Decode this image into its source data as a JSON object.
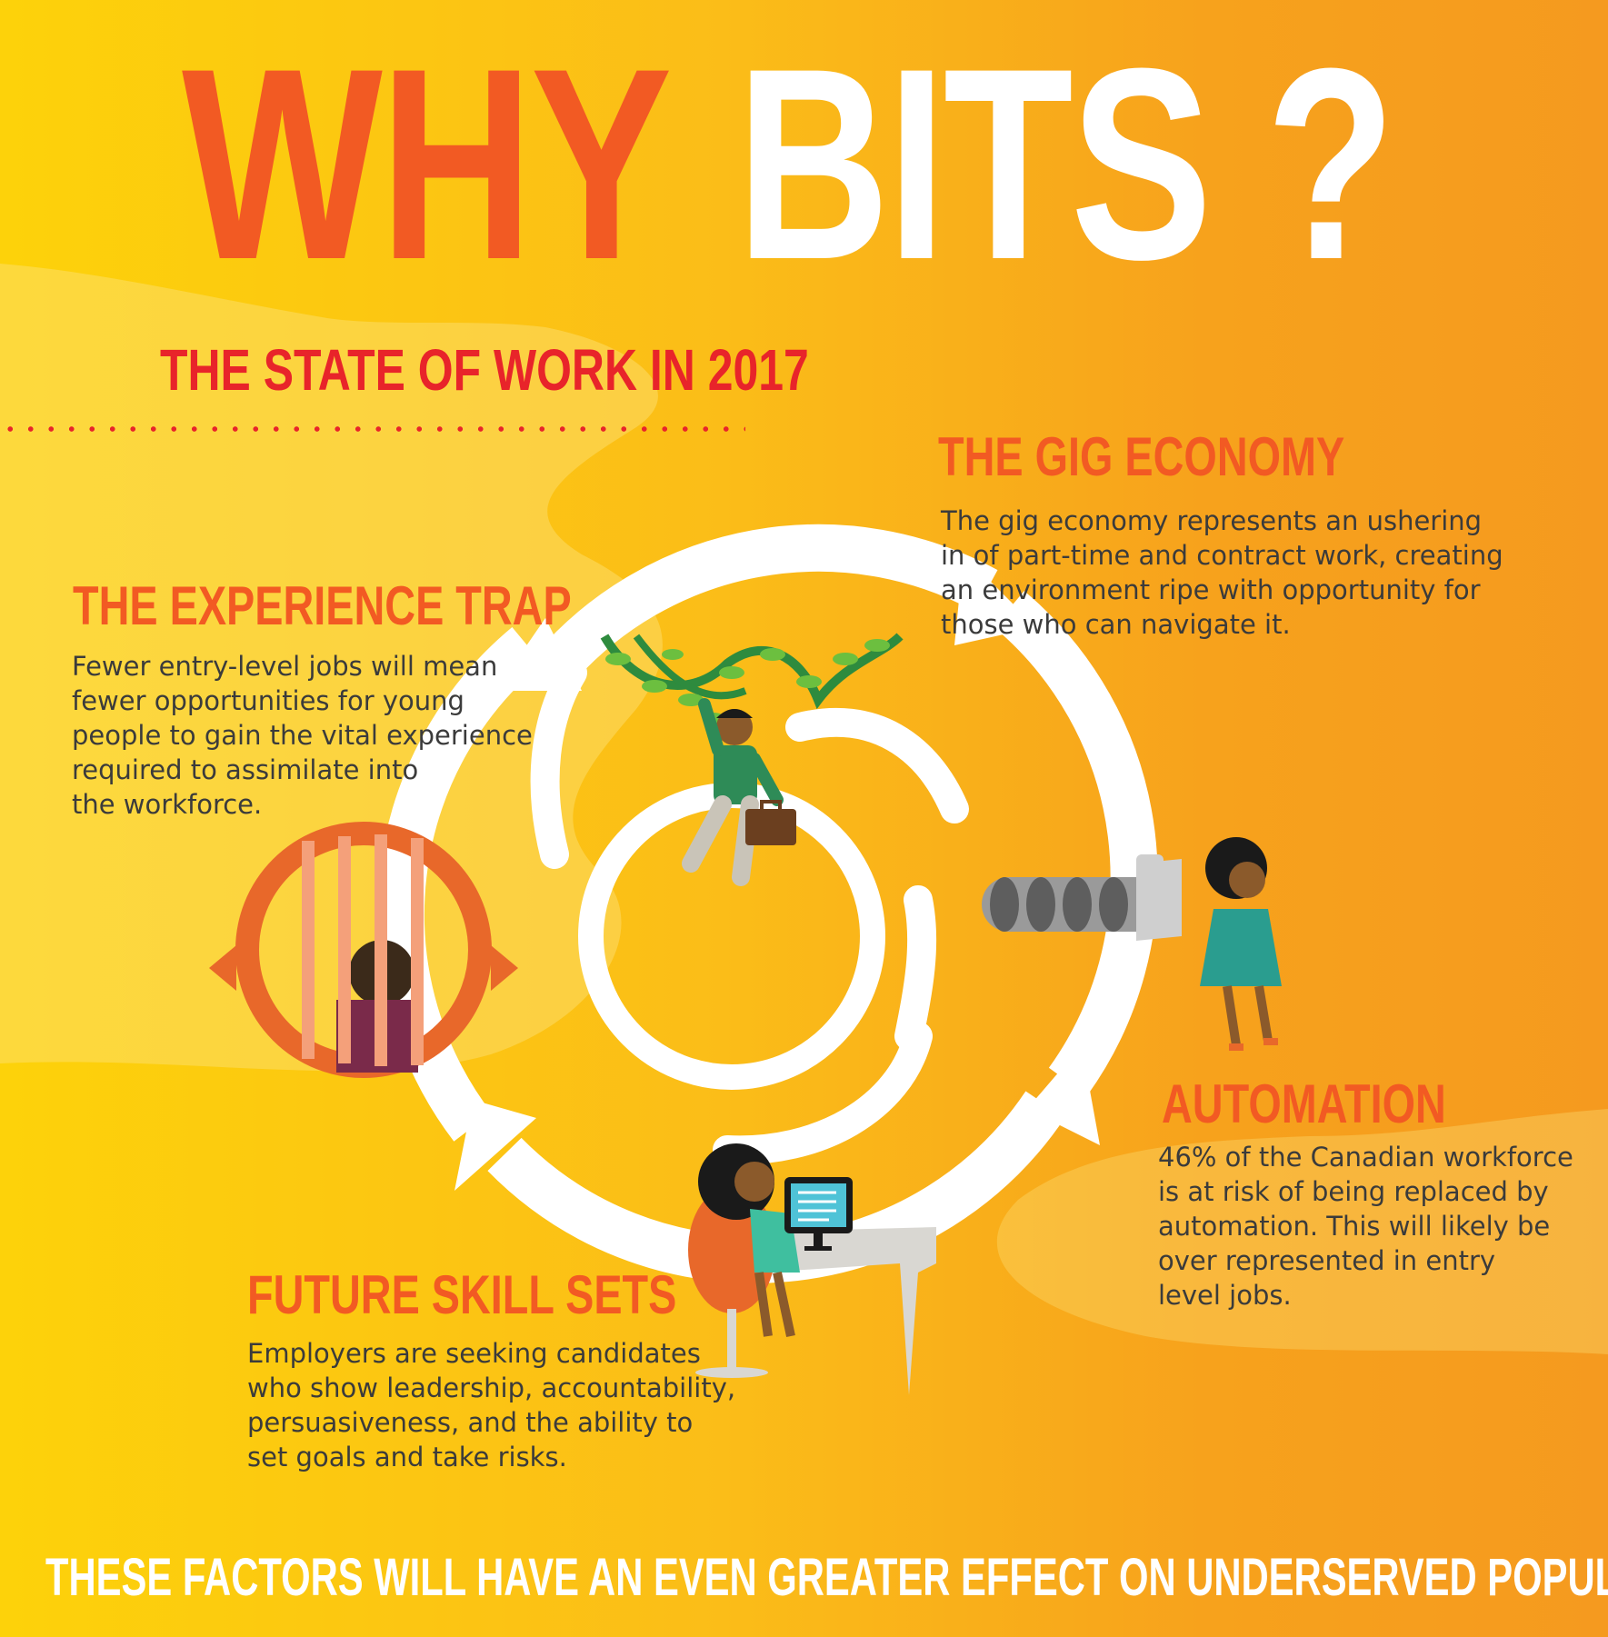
{
  "title": {
    "why": "WHY",
    "bits": "BITS ?"
  },
  "subtitle": "THE STATE OF WORK IN 2017",
  "sections": {
    "gig": {
      "heading": "THE GIG ECONOMY",
      "body": "The gig economy represents an ushering\nin of part-time and contract work, creating\nan environment ripe with opportunity for\n those who can navigate it."
    },
    "experience": {
      "heading": "THE EXPERIENCE TRAP",
      "body": "Fewer entry-level jobs will mean\nfewer opportunities for young\npeople to gain the vital experience\nrequired  to assimilate into\nthe workforce."
    },
    "automation": {
      "heading": "AUTOMATION",
      "body": "46% of the Canadian workforce\nis at risk of being replaced by\nautomation. This will likely be\nover represented in entry\nlevel jobs."
    },
    "skills": {
      "heading": "FUTURE SKILL SETS",
      "body": "Employers are seeking candidates\nwho show leadership, accountability,\npersuasiveness, and the ability to\nset goals and take risks."
    }
  },
  "footer": "THESE FACTORS WILL HAVE AN EVEN GREATER EFFECT ON UNDERSERVED POPULATIONS",
  "colors": {
    "accent_orange": "#f25a23",
    "accent_red": "#e8242a",
    "text_dark": "#3b3b3b",
    "white": "#ffffff"
  },
  "icons": [
    "vines-icon",
    "jail-bars-icon",
    "robot-arm-icon",
    "computer-icon",
    "briefcase-icon"
  ]
}
